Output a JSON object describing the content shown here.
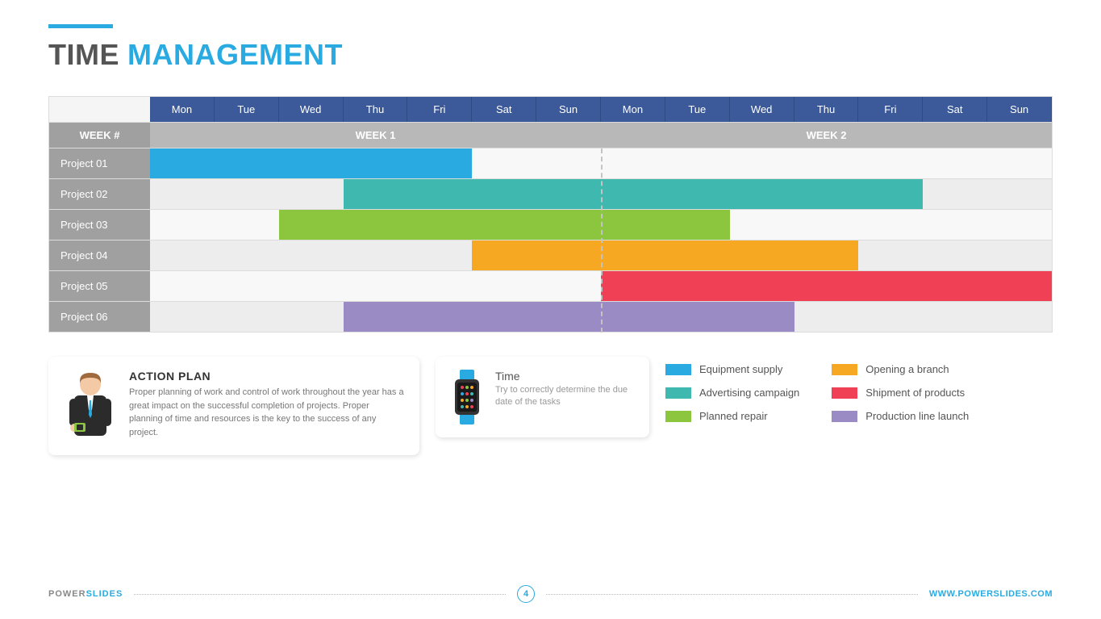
{
  "title": {
    "word1": "TIME",
    "word2": "MANAGEMENT",
    "color1": "#555555",
    "color2": "#29abe2",
    "bar_color": "#29abe2"
  },
  "gantt": {
    "days": [
      "Mon",
      "Tue",
      "Wed",
      "Thu",
      "Fri",
      "Sat",
      "Sun",
      "Mon",
      "Tue",
      "Wed",
      "Thu",
      "Fri",
      "Sat",
      "Sun"
    ],
    "day_header_bg": "#3c5a99",
    "week_label": "WEEK #",
    "weeks": [
      "WEEK 1",
      "WEEK 2"
    ],
    "week_header_bg": "#b8b8b8",
    "row_label_bg": "#a0a0a0",
    "total_days": 14,
    "rows": [
      {
        "label": "Project 01",
        "bar": {
          "start": 0,
          "span": 5,
          "color": "#29abe2"
        }
      },
      {
        "label": "Project 02",
        "bar": {
          "start": 3,
          "span": 9,
          "color": "#3fb8af"
        }
      },
      {
        "label": "Project 03",
        "bar": {
          "start": 2,
          "span": 7,
          "color": "#8cc63f"
        }
      },
      {
        "label": "Project 04",
        "bar": {
          "start": 5,
          "span": 6,
          "color": "#f7a823"
        }
      },
      {
        "label": "Project 05",
        "bar": {
          "start": 7,
          "span": 7,
          "color": "#ef4056"
        }
      },
      {
        "label": "Project 06",
        "bar": {
          "start": 3,
          "span": 7,
          "color": "#9b8bc4"
        }
      }
    ]
  },
  "action": {
    "title": "ACTION PLAN",
    "text": "Proper planning of work and control of work throughout the year has a great impact on the successful completion of projects. Proper planning of time and resources is the key to the success of any project."
  },
  "time": {
    "title": "Time",
    "text": "Try to correctly determine the due date of the tasks"
  },
  "legend": {
    "col1": [
      {
        "label": "Equipment supply",
        "color": "#29abe2"
      },
      {
        "label": "Advertising campaign",
        "color": "#3fb8af"
      },
      {
        "label": "Planned repair",
        "color": "#8cc63f"
      }
    ],
    "col2": [
      {
        "label": "Opening a branch",
        "color": "#f7a823"
      },
      {
        "label": "Shipment of products",
        "color": "#ef4056"
      },
      {
        "label": "Production line launch",
        "color": "#9b8bc4"
      }
    ]
  },
  "footer": {
    "brand1": "POWER",
    "brand2": "SLIDES",
    "page": "4",
    "url": "WWW.POWERSLIDES.COM",
    "accent": "#29abe2"
  }
}
